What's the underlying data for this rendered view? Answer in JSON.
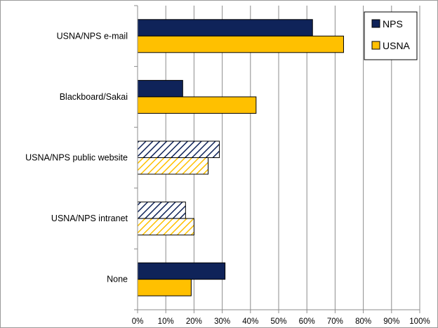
{
  "chart_data": {
    "type": "bar",
    "orientation": "horizontal",
    "title": "",
    "xlabel": "",
    "ylabel": "",
    "categories": [
      "USNA/NPS e-mail",
      "Blackboard/Sakai",
      "USNA/NPS public website",
      "USNA/NPS intranet",
      "None"
    ],
    "series": [
      {
        "name": "NPS",
        "color": "#0f2359",
        "values": [
          62,
          16,
          29,
          17,
          31
        ],
        "hatched": [
          false,
          false,
          true,
          true,
          false
        ]
      },
      {
        "name": "USNA",
        "color": "#ffc000",
        "values": [
          73,
          42,
          25,
          20,
          19
        ],
        "hatched": [
          false,
          false,
          true,
          true,
          false
        ]
      }
    ],
    "xlim": [
      0,
      100
    ],
    "xticks": [
      0,
      10,
      20,
      30,
      40,
      50,
      60,
      70,
      80,
      90,
      100
    ],
    "tick_labels": [
      "0%",
      "10%",
      "20%",
      "30%",
      "40%",
      "50%",
      "60%",
      "70%",
      "80%",
      "90%",
      "100%"
    ],
    "grid": true,
    "legend_position": "top-right"
  }
}
